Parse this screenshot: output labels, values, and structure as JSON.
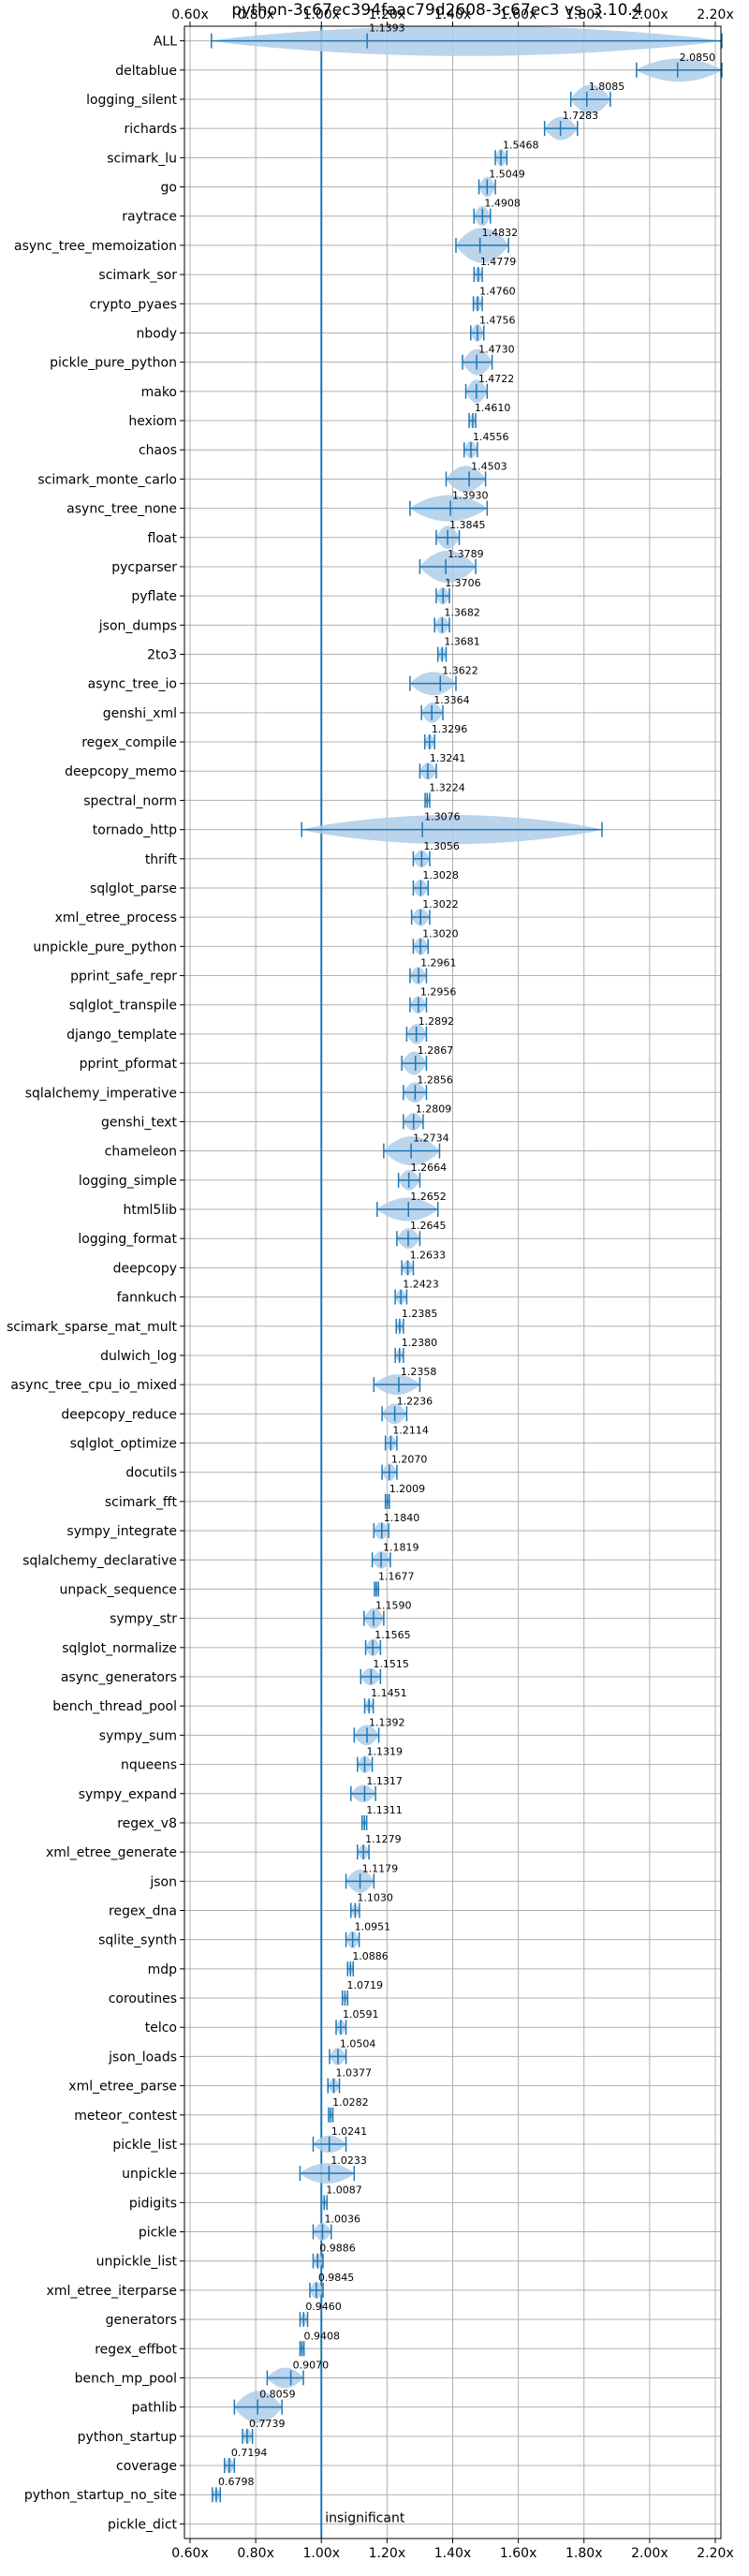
{
  "chart_data": {
    "type": "violin",
    "title": "python-3c67ec394faac79d2608-3c67ec3 vs. 3.10.4",
    "xlabel": "",
    "ylabel": "",
    "xlim": [
      0.6,
      2.2
    ],
    "x_ticks": [
      0.6,
      0.8,
      1.0,
      1.2,
      1.4,
      1.6,
      1.8,
      2.0,
      2.2
    ],
    "x_tick_labels": [
      "0.60x",
      "0.80x",
      "1.00x",
      "1.20x",
      "1.40x",
      "1.60x",
      "1.80x",
      "2.00x",
      "2.20x"
    ],
    "reference_line": 1.0,
    "grid": true,
    "annotation": "insignificant",
    "colors": {
      "violin": "#aecde9",
      "line": "#1f77b4"
    },
    "categories": [
      {
        "name": "ALL",
        "value": 1.1393,
        "label": "1.1393",
        "min": 0.665,
        "max": 2.22,
        "hw": 0.52
      },
      {
        "name": "deltablue",
        "value": 2.085,
        "label": "2.0850",
        "min": 1.96,
        "max": 2.22,
        "hw": 0.4
      },
      {
        "name": "logging_silent",
        "value": 1.8085,
        "label": "1.8085",
        "min": 1.76,
        "max": 1.88,
        "hw": 0.5
      },
      {
        "name": "richards",
        "value": 1.7283,
        "label": "1.7283",
        "min": 1.68,
        "max": 1.78,
        "hw": 0.4
      },
      {
        "name": "scimark_lu",
        "value": 1.5468,
        "label": "1.5468",
        "min": 1.53,
        "max": 1.565,
        "hw": 0.3
      },
      {
        "name": "go",
        "value": 1.5049,
        "label": "1.5049",
        "min": 1.48,
        "max": 1.53,
        "hw": 0.35
      },
      {
        "name": "raytrace",
        "value": 1.4908,
        "label": "1.4908",
        "min": 1.465,
        "max": 1.515,
        "hw": 0.35
      },
      {
        "name": "async_tree_memoization",
        "value": 1.4832,
        "label": "1.4832",
        "min": 1.41,
        "max": 1.57,
        "hw": 0.6
      },
      {
        "name": "scimark_sor",
        "value": 1.4779,
        "label": "1.4779",
        "min": 1.465,
        "max": 1.49,
        "hw": 0.25
      },
      {
        "name": "crypto_pyaes",
        "value": 1.476,
        "label": "1.4760",
        "min": 1.463,
        "max": 1.49,
        "hw": 0.25
      },
      {
        "name": "nbody",
        "value": 1.4756,
        "label": "1.4756",
        "min": 1.455,
        "max": 1.495,
        "hw": 0.3
      },
      {
        "name": "pickle_pure_python",
        "value": 1.473,
        "label": "1.4730",
        "min": 1.43,
        "max": 1.52,
        "hw": 0.45
      },
      {
        "name": "mako",
        "value": 1.4722,
        "label": "1.4722",
        "min": 1.44,
        "max": 1.505,
        "hw": 0.4
      },
      {
        "name": "hexiom",
        "value": 1.461,
        "label": "1.4610",
        "min": 1.45,
        "max": 1.47,
        "hw": 0.22
      },
      {
        "name": "chaos",
        "value": 1.4556,
        "label": "1.4556",
        "min": 1.435,
        "max": 1.475,
        "hw": 0.3
      },
      {
        "name": "scimark_monte_carlo",
        "value": 1.4503,
        "label": "1.4503",
        "min": 1.38,
        "max": 1.5,
        "hw": 0.45
      },
      {
        "name": "async_tree_none",
        "value": 1.393,
        "label": "1.3930",
        "min": 1.27,
        "max": 1.505,
        "hw": 0.45
      },
      {
        "name": "float",
        "value": 1.3845,
        "label": "1.3845",
        "min": 1.35,
        "max": 1.42,
        "hw": 0.4
      },
      {
        "name": "pycparser",
        "value": 1.3789,
        "label": "1.3789",
        "min": 1.3,
        "max": 1.47,
        "hw": 0.55
      },
      {
        "name": "pyflate",
        "value": 1.3706,
        "label": "1.3706",
        "min": 1.35,
        "max": 1.39,
        "hw": 0.3
      },
      {
        "name": "json_dumps",
        "value": 1.3682,
        "label": "1.3682",
        "min": 1.345,
        "max": 1.39,
        "hw": 0.3
      },
      {
        "name": "2to3",
        "value": 1.3681,
        "label": "1.3681",
        "min": 1.355,
        "max": 1.38,
        "hw": 0.22
      },
      {
        "name": "async_tree_io",
        "value": 1.3622,
        "label": "1.3622",
        "min": 1.27,
        "max": 1.41,
        "hw": 0.4
      },
      {
        "name": "genshi_xml",
        "value": 1.3364,
        "label": "1.3364",
        "min": 1.305,
        "max": 1.37,
        "hw": 0.35
      },
      {
        "name": "regex_compile",
        "value": 1.3296,
        "label": "1.3296",
        "min": 1.315,
        "max": 1.345,
        "hw": 0.25
      },
      {
        "name": "deepcopy_memo",
        "value": 1.3241,
        "label": "1.3241",
        "min": 1.3,
        "max": 1.35,
        "hw": 0.3
      },
      {
        "name": "spectral_norm",
        "value": 1.3224,
        "label": "1.3224",
        "min": 1.316,
        "max": 1.33,
        "hw": 0.15
      },
      {
        "name": "tornado_http",
        "value": 1.3076,
        "label": "1.3076",
        "min": 0.94,
        "max": 1.855,
        "hw": 0.5
      },
      {
        "name": "thrift",
        "value": 1.3056,
        "label": "1.3056",
        "min": 1.28,
        "max": 1.33,
        "hw": 0.3
      },
      {
        "name": "sqlglot_parse",
        "value": 1.3028,
        "label": "1.3028",
        "min": 1.28,
        "max": 1.325,
        "hw": 0.3
      },
      {
        "name": "xml_etree_process",
        "value": 1.3022,
        "label": "1.3022",
        "min": 1.275,
        "max": 1.33,
        "hw": 0.3
      },
      {
        "name": "unpickle_pure_python",
        "value": 1.302,
        "label": "1.3020",
        "min": 1.28,
        "max": 1.325,
        "hw": 0.3
      },
      {
        "name": "pprint_safe_repr",
        "value": 1.2961,
        "label": "1.2961",
        "min": 1.27,
        "max": 1.32,
        "hw": 0.3
      },
      {
        "name": "sqlglot_transpile",
        "value": 1.2956,
        "label": "1.2956",
        "min": 1.27,
        "max": 1.32,
        "hw": 0.3
      },
      {
        "name": "django_template",
        "value": 1.2892,
        "label": "1.2892",
        "min": 1.26,
        "max": 1.32,
        "hw": 0.35
      },
      {
        "name": "pprint_pformat",
        "value": 1.2867,
        "label": "1.2867",
        "min": 1.245,
        "max": 1.32,
        "hw": 0.4
      },
      {
        "name": "sqlalchemy_imperative",
        "value": 1.2856,
        "label": "1.2856",
        "min": 1.25,
        "max": 1.32,
        "hw": 0.35
      },
      {
        "name": "genshi_text",
        "value": 1.2809,
        "label": "1.2809",
        "min": 1.25,
        "max": 1.31,
        "hw": 0.3
      },
      {
        "name": "chameleon",
        "value": 1.2734,
        "label": "1.2734",
        "min": 1.19,
        "max": 1.36,
        "hw": 0.5
      },
      {
        "name": "logging_simple",
        "value": 1.2664,
        "label": "1.2664",
        "min": 1.235,
        "max": 1.3,
        "hw": 0.35
      },
      {
        "name": "html5lib",
        "value": 1.2652,
        "label": "1.2652",
        "min": 1.17,
        "max": 1.355,
        "hw": 0.4
      },
      {
        "name": "logging_format",
        "value": 1.2645,
        "label": "1.2645",
        "min": 1.23,
        "max": 1.3,
        "hw": 0.35
      },
      {
        "name": "deepcopy",
        "value": 1.2633,
        "label": "1.2633",
        "min": 1.245,
        "max": 1.28,
        "hw": 0.25
      },
      {
        "name": "fannkuch",
        "value": 1.2423,
        "label": "1.2423",
        "min": 1.225,
        "max": 1.26,
        "hw": 0.25
      },
      {
        "name": "scimark_sparse_mat_mult",
        "value": 1.2385,
        "label": "1.2385",
        "min": 1.228,
        "max": 1.25,
        "hw": 0.2
      },
      {
        "name": "dulwich_log",
        "value": 1.238,
        "label": "1.2380",
        "min": 1.225,
        "max": 1.25,
        "hw": 0.2
      },
      {
        "name": "async_tree_cpu_io_mixed",
        "value": 1.2358,
        "label": "1.2358",
        "min": 1.16,
        "max": 1.3,
        "hw": 0.35
      },
      {
        "name": "deepcopy_reduce",
        "value": 1.2236,
        "label": "1.2236",
        "min": 1.185,
        "max": 1.26,
        "hw": 0.35
      },
      {
        "name": "sqlglot_optimize",
        "value": 1.2114,
        "label": "1.2114",
        "min": 1.195,
        "max": 1.23,
        "hw": 0.25
      },
      {
        "name": "docutils",
        "value": 1.207,
        "label": "1.2070",
        "min": 1.185,
        "max": 1.23,
        "hw": 0.3
      },
      {
        "name": "scimark_fft",
        "value": 1.2009,
        "label": "1.2009",
        "min": 1.195,
        "max": 1.207,
        "hw": 0.15
      },
      {
        "name": "sympy_integrate",
        "value": 1.184,
        "label": "1.1840",
        "min": 1.16,
        "max": 1.205,
        "hw": 0.3
      },
      {
        "name": "sqlalchemy_declarative",
        "value": 1.1819,
        "label": "1.1819",
        "min": 1.155,
        "max": 1.21,
        "hw": 0.3
      },
      {
        "name": "unpack_sequence",
        "value": 1.1677,
        "label": "1.1677",
        "min": 1.162,
        "max": 1.174,
        "hw": 0.15
      },
      {
        "name": "sympy_str",
        "value": 1.159,
        "label": "1.1590",
        "min": 1.13,
        "max": 1.19,
        "hw": 0.35
      },
      {
        "name": "sqlglot_normalize",
        "value": 1.1565,
        "label": "1.1565",
        "min": 1.135,
        "max": 1.18,
        "hw": 0.3
      },
      {
        "name": "async_generators",
        "value": 1.1515,
        "label": "1.1515",
        "min": 1.12,
        "max": 1.18,
        "hw": 0.3
      },
      {
        "name": "bench_thread_pool",
        "value": 1.1451,
        "label": "1.1451",
        "min": 1.132,
        "max": 1.158,
        "hw": 0.2
      },
      {
        "name": "sympy_sum",
        "value": 1.1392,
        "label": "1.1392",
        "min": 1.1,
        "max": 1.175,
        "hw": 0.35
      },
      {
        "name": "nqueens",
        "value": 1.1319,
        "label": "1.1319",
        "min": 1.11,
        "max": 1.155,
        "hw": 0.3
      },
      {
        "name": "sympy_expand",
        "value": 1.1317,
        "label": "1.1317",
        "min": 1.09,
        "max": 1.165,
        "hw": 0.3
      },
      {
        "name": "regex_v8",
        "value": 1.1311,
        "label": "1.1311",
        "min": 1.124,
        "max": 1.138,
        "hw": 0.15
      },
      {
        "name": "xml_etree_generate",
        "value": 1.1279,
        "label": "1.1279",
        "min": 1.11,
        "max": 1.145,
        "hw": 0.25
      },
      {
        "name": "json",
        "value": 1.1179,
        "label": "1.1179",
        "min": 1.075,
        "max": 1.16,
        "hw": 0.4
      },
      {
        "name": "regex_dna",
        "value": 1.103,
        "label": "1.1030",
        "min": 1.09,
        "max": 1.116,
        "hw": 0.2
      },
      {
        "name": "sqlite_synth",
        "value": 1.0951,
        "label": "1.0951",
        "min": 1.075,
        "max": 1.115,
        "hw": 0.3
      },
      {
        "name": "mdp",
        "value": 1.0886,
        "label": "1.0886",
        "min": 1.08,
        "max": 1.097,
        "hw": 0.2
      },
      {
        "name": "coroutines",
        "value": 1.0719,
        "label": "1.0719",
        "min": 1.064,
        "max": 1.08,
        "hw": 0.15
      },
      {
        "name": "telco",
        "value": 1.0591,
        "label": "1.0591",
        "min": 1.045,
        "max": 1.075,
        "hw": 0.25
      },
      {
        "name": "json_loads",
        "value": 1.0504,
        "label": "1.0504",
        "min": 1.025,
        "max": 1.075,
        "hw": 0.3
      },
      {
        "name": "xml_etree_parse",
        "value": 1.0377,
        "label": "1.0377",
        "min": 1.02,
        "max": 1.055,
        "hw": 0.25
      },
      {
        "name": "meteor_contest",
        "value": 1.0282,
        "label": "1.0282",
        "min": 1.022,
        "max": 1.035,
        "hw": 0.15
      },
      {
        "name": "pickle_list",
        "value": 1.0241,
        "label": "1.0241",
        "min": 0.975,
        "max": 1.075,
        "hw": 0.3
      },
      {
        "name": "unpickle",
        "value": 1.0233,
        "label": "1.0233",
        "min": 0.935,
        "max": 1.1,
        "hw": 0.35
      },
      {
        "name": "pidigits",
        "value": 1.0087,
        "label": "1.0087",
        "min": 1.0,
        "max": 1.017,
        "hw": 0.15
      },
      {
        "name": "pickle",
        "value": 1.0036,
        "label": "1.0036",
        "min": 0.975,
        "max": 1.03,
        "hw": 0.3
      },
      {
        "name": "unpickle_list",
        "value": 0.9886,
        "label": "0.9886",
        "min": 0.975,
        "max": 1.005,
        "hw": 0.25
      },
      {
        "name": "xml_etree_iterparse",
        "value": 0.9845,
        "label": "0.9845",
        "min": 0.965,
        "max": 1.005,
        "hw": 0.3
      },
      {
        "name": "generators",
        "value": 0.946,
        "label": "0.9460",
        "min": 0.935,
        "max": 0.958,
        "hw": 0.2
      },
      {
        "name": "regex_effbot",
        "value": 0.9408,
        "label": "0.9408",
        "min": 0.935,
        "max": 0.947,
        "hw": 0.15
      },
      {
        "name": "bench_mp_pool",
        "value": 0.907,
        "label": "0.9070",
        "min": 0.835,
        "max": 0.945,
        "hw": 0.35
      },
      {
        "name": "pathlib",
        "value": 0.8059,
        "label": "0.8059",
        "min": 0.735,
        "max": 0.88,
        "hw": 0.55
      },
      {
        "name": "python_startup",
        "value": 0.7739,
        "label": "0.7739",
        "min": 0.76,
        "max": 0.79,
        "hw": 0.25
      },
      {
        "name": "coverage",
        "value": 0.7194,
        "label": "0.7194",
        "min": 0.705,
        "max": 0.735,
        "hw": 0.25
      },
      {
        "name": "python_startup_no_site",
        "value": 0.6798,
        "label": "0.6798",
        "min": 0.668,
        "max": 0.692,
        "hw": 0.2
      },
      {
        "name": "pickle_dict",
        "value": null,
        "label": "",
        "min": null,
        "max": null,
        "hw": 0
      }
    ]
  }
}
